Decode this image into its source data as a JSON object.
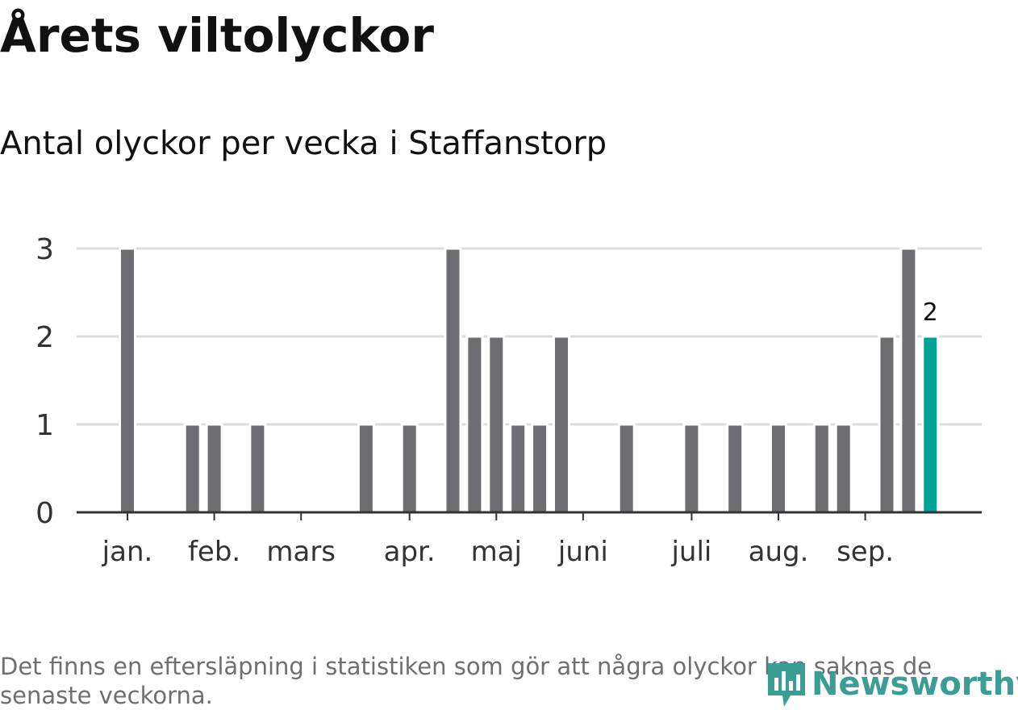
{
  "title": "Årets viltolyckor",
  "subtitle": "Antal olyckor per vecka i Staffanstorp",
  "note": "Det finns en eftersläpning i statistiken som gör att några olyckor kan saknas de senaste veckorna.",
  "logo": "Newsworthy",
  "colors": {
    "bar": "#6e6d72",
    "highlight": "#00a39a",
    "grid": "#dcdcdc",
    "axis": "#333333"
  },
  "chart_data": {
    "type": "bar",
    "title": "Antal olyckor per vecka i Staffanstorp",
    "xlabel": "",
    "ylabel": "",
    "ylim": [
      0,
      3
    ],
    "yticks": [
      "0",
      "1",
      "2",
      "3"
    ],
    "weeks": [
      1,
      2,
      3,
      4,
      5,
      6,
      7,
      8,
      9,
      10,
      11,
      12,
      13,
      14,
      15,
      16,
      17,
      18,
      19,
      20,
      21,
      22,
      23,
      24,
      25,
      26,
      27,
      28,
      29,
      30,
      31,
      32,
      33,
      34,
      35,
      36,
      37,
      38
    ],
    "values": [
      3,
      0,
      0,
      1,
      1,
      0,
      1,
      0,
      0,
      0,
      0,
      1,
      0,
      1,
      0,
      3,
      2,
      2,
      1,
      1,
      2,
      0,
      0,
      1,
      0,
      0,
      1,
      0,
      1,
      0,
      1,
      0,
      1,
      1,
      0,
      2,
      3,
      2
    ],
    "highlight_last": true,
    "last_label": "2",
    "months": [
      {
        "label": "jan.",
        "week": 1
      },
      {
        "label": "feb.",
        "week": 5
      },
      {
        "label": "mars",
        "week": 9
      },
      {
        "label": "apr.",
        "week": 14
      },
      {
        "label": "maj",
        "week": 18
      },
      {
        "label": "juni",
        "week": 22
      },
      {
        "label": "juli",
        "week": 27
      },
      {
        "label": "aug.",
        "week": 31
      },
      {
        "label": "sep.",
        "week": 35
      }
    ]
  }
}
